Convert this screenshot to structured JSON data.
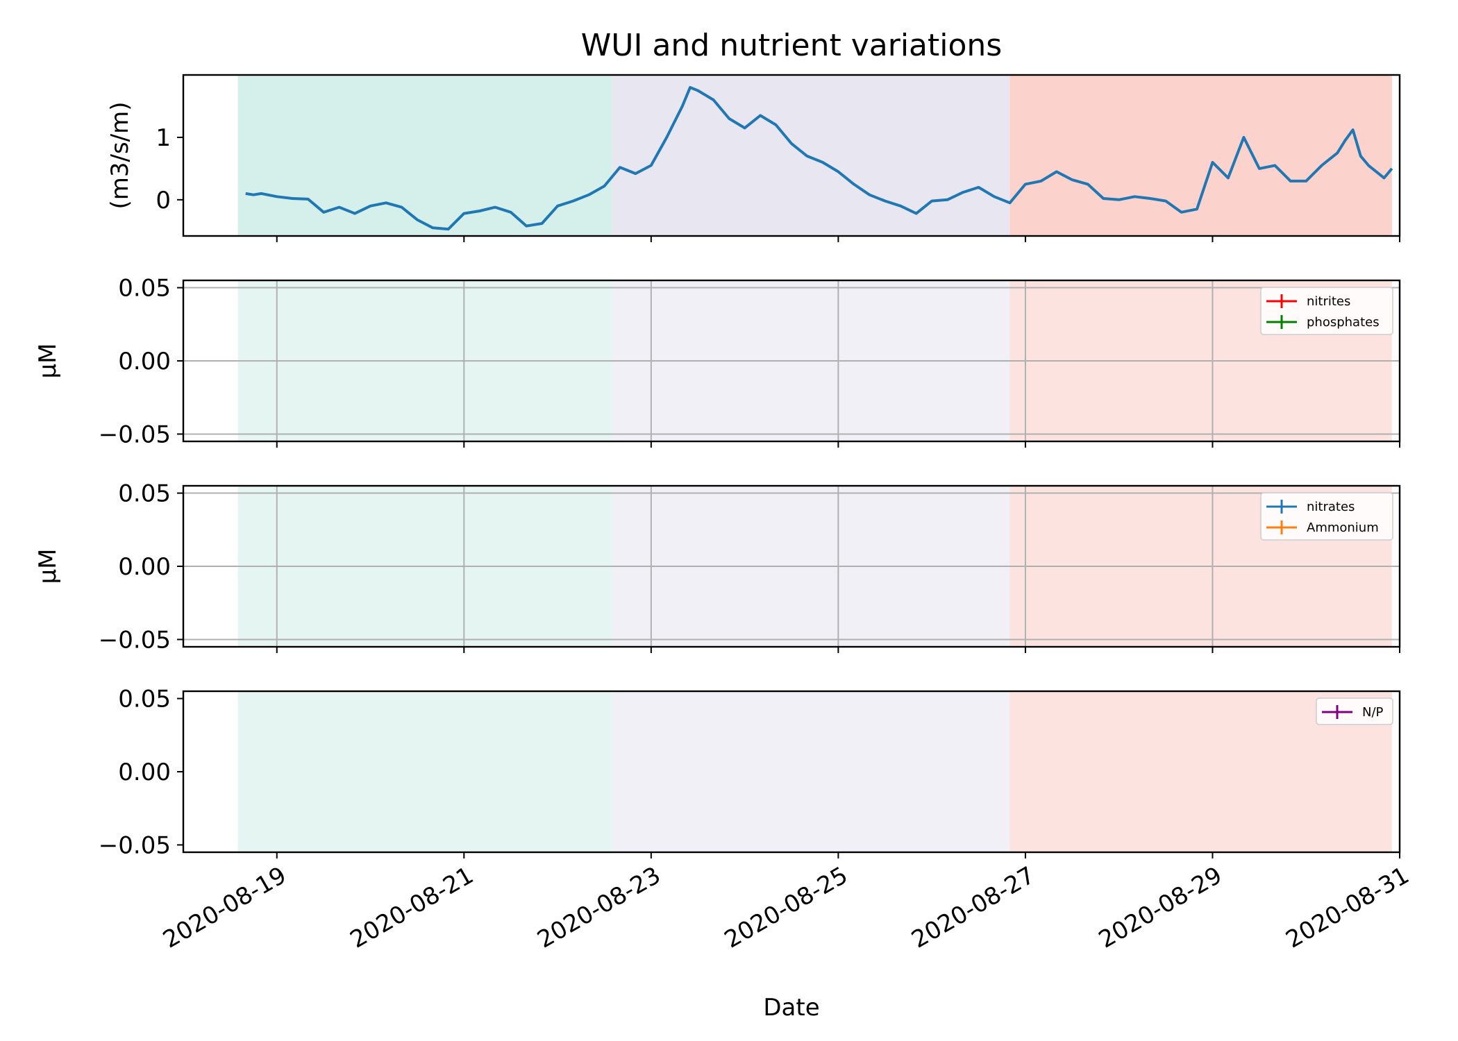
{
  "figure": {
    "title": "WUI and nutrient variations",
    "xlabel": "Date",
    "x_tick_labels": [
      "2020-08-19",
      "2020-08-21",
      "2020-08-23",
      "2020-08-25",
      "2020-08-27",
      "2020-08-29",
      "2020-08-31"
    ]
  },
  "chart_data": [
    {
      "type": "line",
      "ylabel": "(m3/s/m)",
      "x_range": [
        "2020-08-18",
        "2020-08-31"
      ],
      "ylim": [
        -0.58,
        2.0
      ],
      "y_ticks": [
        0,
        1
      ],
      "y_tick_labels": [
        "0",
        "1"
      ],
      "grid": false,
      "shaded_periods": [
        {
          "start": "2020-08-18",
          "end": "2020-08-22",
          "color": "#d5efea"
        },
        {
          "start": "2020-08-22",
          "end": "2020-08-26",
          "color": "#e8e6f1"
        },
        {
          "start": "2020-08-26",
          "end": "2020-08-30",
          "color": "#fcd2cd"
        }
      ],
      "series": [
        {
          "color": "#1f77b4",
          "x": [
            "2020-08-18 16:00",
            "2020-08-18 18:00",
            "2020-08-18 20:00",
            "2020-08-19 00:00",
            "2020-08-19 04:00",
            "2020-08-19 08:00",
            "2020-08-19 12:00",
            "2020-08-19 16:00",
            "2020-08-19 20:00",
            "2020-08-20 00:00",
            "2020-08-20 04:00",
            "2020-08-20 08:00",
            "2020-08-20 12:00",
            "2020-08-20 16:00",
            "2020-08-20 20:00",
            "2020-08-21 00:00",
            "2020-08-21 04:00",
            "2020-08-21 08:00",
            "2020-08-21 12:00",
            "2020-08-21 16:00",
            "2020-08-21 20:00",
            "2020-08-22 00:00",
            "2020-08-22 04:00",
            "2020-08-22 08:00",
            "2020-08-22 12:00",
            "2020-08-22 16:00",
            "2020-08-22 20:00",
            "2020-08-23 00:00",
            "2020-08-23 04:00",
            "2020-08-23 08:00",
            "2020-08-23 10:00",
            "2020-08-23 12:00",
            "2020-08-23 16:00",
            "2020-08-23 20:00",
            "2020-08-24 00:00",
            "2020-08-24 04:00",
            "2020-08-24 08:00",
            "2020-08-24 12:00",
            "2020-08-24 16:00",
            "2020-08-24 20:00",
            "2020-08-25 00:00",
            "2020-08-25 04:00",
            "2020-08-25 08:00",
            "2020-08-25 12:00",
            "2020-08-25 16:00",
            "2020-08-25 20:00",
            "2020-08-26 00:00",
            "2020-08-26 04:00",
            "2020-08-26 08:00",
            "2020-08-26 12:00",
            "2020-08-26 16:00",
            "2020-08-26 20:00",
            "2020-08-27 00:00",
            "2020-08-27 04:00",
            "2020-08-27 08:00",
            "2020-08-27 12:00",
            "2020-08-27 16:00",
            "2020-08-27 20:00",
            "2020-08-28 00:00",
            "2020-08-28 04:00",
            "2020-08-28 08:00",
            "2020-08-28 12:00",
            "2020-08-28 16:00",
            "2020-08-28 20:00",
            "2020-08-29 00:00",
            "2020-08-29 04:00",
            "2020-08-29 08:00",
            "2020-08-29 12:00",
            "2020-08-29 16:00",
            "2020-08-29 20:00",
            "2020-08-30 00:00",
            "2020-08-30 04:00",
            "2020-08-30 08:00",
            "2020-08-30 10:00",
            "2020-08-30 12:00",
            "2020-08-30 14:00",
            "2020-08-30 16:00",
            "2020-08-30 20:00",
            "2020-08-30 22:00"
          ],
          "values": [
            0.1,
            0.08,
            0.1,
            0.05,
            0.02,
            0.01,
            -0.2,
            -0.12,
            -0.22,
            -0.1,
            -0.05,
            -0.12,
            -0.32,
            -0.45,
            -0.47,
            -0.22,
            -0.18,
            -0.12,
            -0.2,
            -0.42,
            -0.38,
            -0.1,
            -0.02,
            0.08,
            0.22,
            0.52,
            0.42,
            0.55,
            1.0,
            1.5,
            1.8,
            1.75,
            1.6,
            1.3,
            1.15,
            1.35,
            1.2,
            0.9,
            0.7,
            0.6,
            0.45,
            0.25,
            0.08,
            -0.02,
            -0.1,
            -0.22,
            -0.02,
            0.0,
            0.12,
            0.2,
            0.05,
            -0.05,
            0.25,
            0.3,
            0.45,
            0.32,
            0.25,
            0.02,
            0.0,
            0.05,
            0.02,
            -0.02,
            -0.2,
            -0.15,
            0.6,
            0.35,
            1.0,
            0.5,
            0.55,
            0.3,
            0.3,
            0.55,
            0.75,
            0.95,
            1.12,
            0.7,
            0.55,
            0.35,
            0.5
          ]
        }
      ]
    },
    {
      "type": "line",
      "ylabel": "μM",
      "x_range": [
        "2020-08-18",
        "2020-08-31"
      ],
      "ylim": [
        -0.055,
        0.055
      ],
      "y_ticks": [
        -0.05,
        0,
        0.05
      ],
      "y_tick_labels": [
        "−0.05",
        "0.00",
        "0.05"
      ],
      "grid": true,
      "legend": "top-right",
      "series": [
        {
          "name": "nitrites",
          "color": "#ff0000",
          "values": []
        },
        {
          "name": "phosphates",
          "color": "#008000",
          "values": []
        }
      ]
    },
    {
      "type": "line",
      "ylabel": "μM",
      "x_range": [
        "2020-08-18",
        "2020-08-31"
      ],
      "ylim": [
        -0.055,
        0.055
      ],
      "y_ticks": [
        -0.05,
        0,
        0.05
      ],
      "y_tick_labels": [
        "−0.05",
        "0.00",
        "0.05"
      ],
      "grid": true,
      "legend": "top-right",
      "series": [
        {
          "name": "nitrates",
          "color": "#1f77b4",
          "values": []
        },
        {
          "name": "Ammonium",
          "color": "#ff7f0e",
          "values": []
        }
      ]
    },
    {
      "type": "line",
      "ylabel": "",
      "x_range": [
        "2020-08-18",
        "2020-08-31"
      ],
      "ylim": [
        -0.055,
        0.055
      ],
      "y_ticks": [
        -0.05,
        0,
        0.05
      ],
      "y_tick_labels": [
        "−0.05",
        "0.00",
        "0.05"
      ],
      "grid": false,
      "legend": "top-right",
      "series": [
        {
          "name": "N/P",
          "color": "#800080",
          "values": []
        }
      ]
    }
  ]
}
